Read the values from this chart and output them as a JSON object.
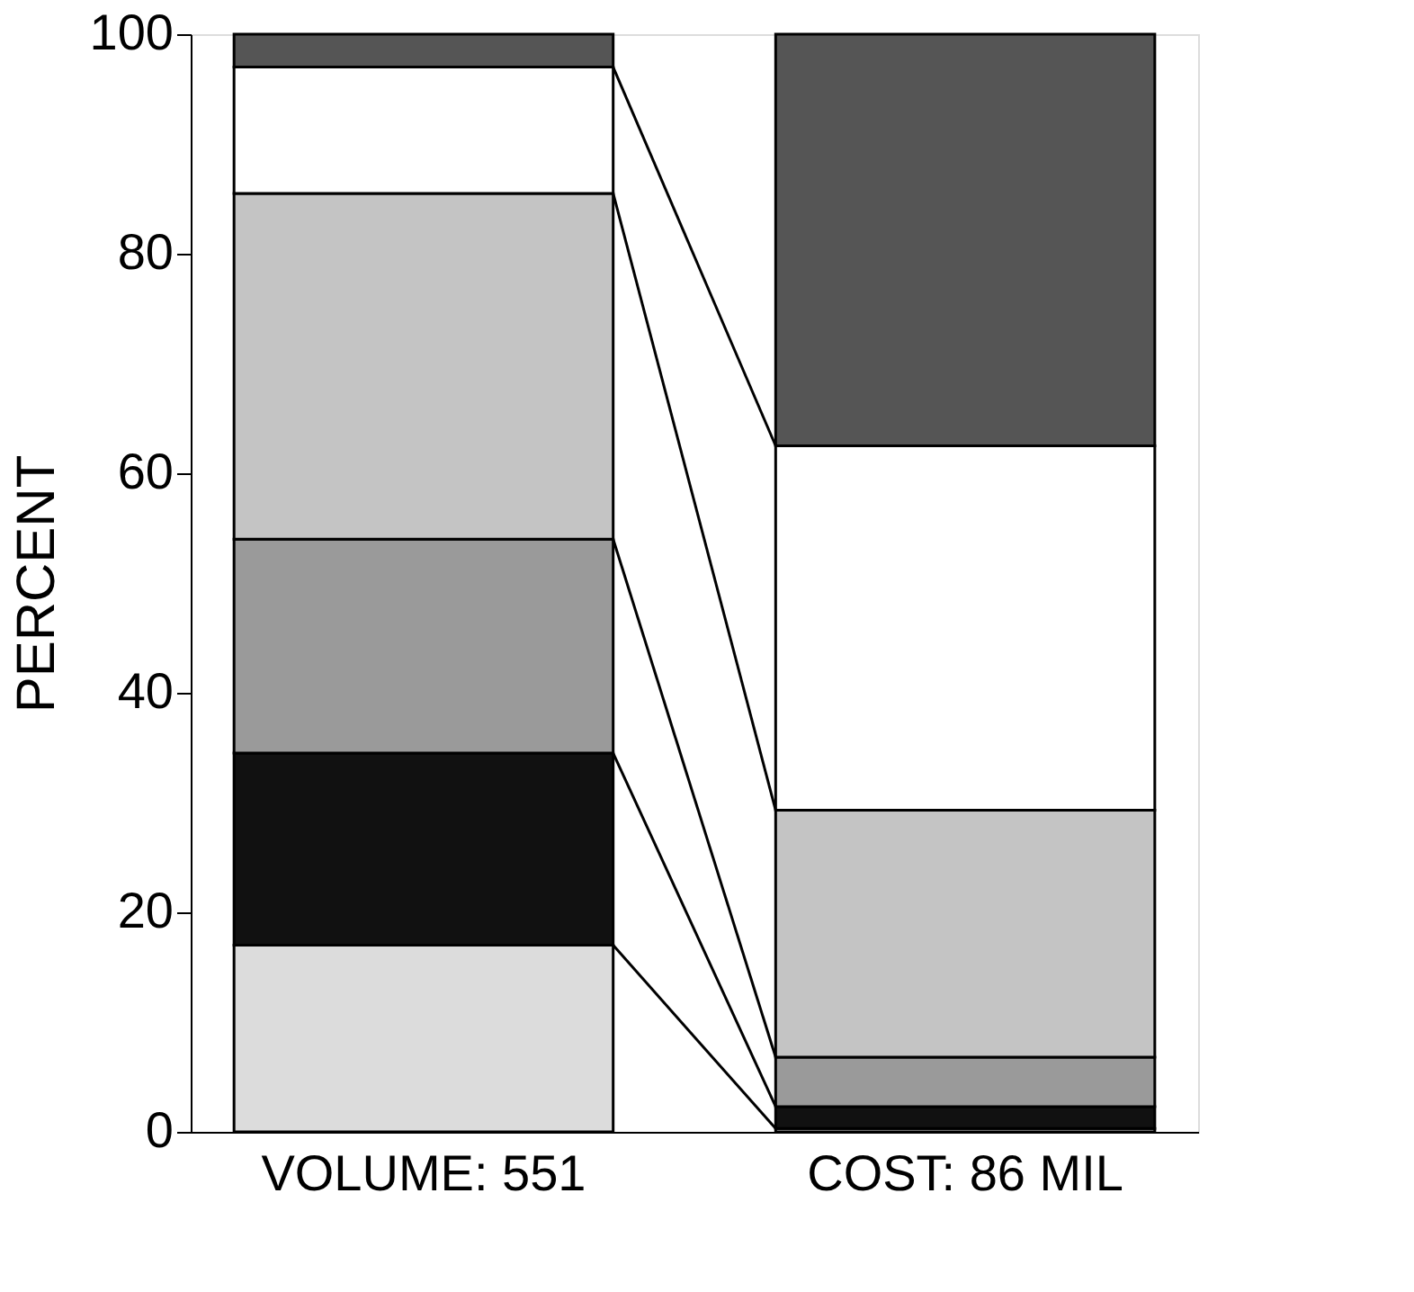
{
  "chart_data": {
    "type": "bar",
    "stacked": true,
    "ylabel": "PERCENT",
    "categories": [
      "VOLUME: 551",
      "COST: 86 MIL"
    ],
    "series": [
      {
        "color": "#dcdcdc",
        "values": [
          17,
          0.3
        ]
      },
      {
        "color": "#111111",
        "values": [
          17.5,
          2.0
        ]
      },
      {
        "color": "#9a9a9a",
        "values": [
          19.5,
          4.5
        ]
      },
      {
        "color": "#c4c4c4",
        "values": [
          31.5,
          22.5
        ]
      },
      {
        "color": "#ffffff",
        "values": [
          11.5,
          33.2
        ]
      },
      {
        "color": "#555555",
        "values": [
          3,
          37.5
        ]
      }
    ],
    "ylim": [
      0,
      100
    ],
    "yticks": [
      0,
      20,
      40,
      60,
      80,
      100
    ],
    "grid": false
  }
}
